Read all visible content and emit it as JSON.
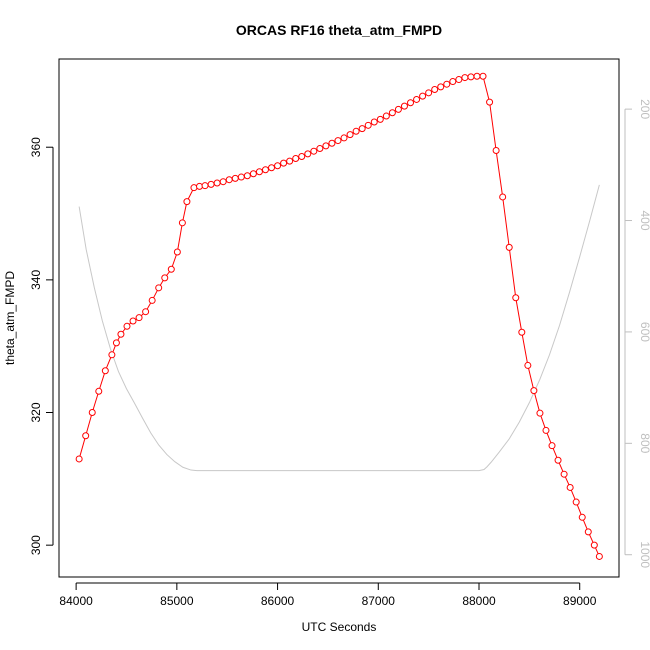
{
  "chart_data": {
    "type": "line",
    "title": "ORCAS RF16 theta_atm_FMPD",
    "xlabel": "UTC Seconds",
    "ylabel": "theta_atm_FMPD",
    "xlim": [
      83830,
      89390
    ],
    "ylim": [
      295.2,
      373.3
    ],
    "x_ticks": [
      "84000",
      "85000",
      "86000",
      "87000",
      "88000",
      "89000"
    ],
    "y_ticks": [
      "300",
      "320",
      "340",
      "360"
    ],
    "y2_ticks": [
      "200",
      "400",
      "600",
      "800",
      "1000"
    ],
    "y2_lim": [
      1040,
      110
    ],
    "grid": false,
    "series": [
      {
        "color": "#ff0000",
        "style": "line-with-open-circles",
        "x": [
          84030,
          84095,
          84160,
          84225,
          84290,
          84355,
          84400,
          84445,
          84505,
          84565,
          84625,
          84690,
          84755,
          84820,
          84880,
          84945,
          85005,
          85055,
          85100,
          85170,
          85225,
          85280,
          85340,
          85400,
          85460,
          85520,
          85580,
          85640,
          85700,
          85760,
          85820,
          85880,
          85940,
          86000,
          86060,
          86120,
          86180,
          86240,
          86300,
          86360,
          86420,
          86480,
          86540,
          86600,
          86660,
          86720,
          86780,
          86840,
          86900,
          86960,
          87020,
          87080,
          87140,
          87200,
          87260,
          87320,
          87380,
          87440,
          87500,
          87560,
          87620,
          87680,
          87740,
          87800,
          87860,
          87920,
          87980,
          88040,
          88105,
          88170,
          88235,
          88300,
          88365,
          88425,
          88485,
          88545,
          88605,
          88665,
          88725,
          88785,
          88845,
          88905,
          88965,
          89025,
          89085,
          89145,
          89195
        ],
        "values": [
          313.0,
          316.5,
          320.0,
          323.2,
          326.3,
          328.7,
          330.5,
          331.8,
          333.0,
          333.8,
          334.3,
          335.2,
          336.9,
          338.8,
          340.3,
          341.6,
          344.2,
          348.6,
          351.8,
          353.9,
          354.1,
          354.2,
          354.4,
          354.6,
          354.8,
          355.1,
          355.3,
          355.5,
          355.7,
          356.0,
          356.3,
          356.6,
          356.9,
          357.2,
          357.6,
          357.9,
          358.3,
          358.6,
          359.0,
          359.4,
          359.8,
          360.2,
          360.6,
          361.0,
          361.4,
          361.9,
          362.4,
          362.8,
          363.3,
          363.8,
          364.2,
          364.7,
          365.2,
          365.7,
          366.2,
          366.7,
          367.2,
          367.7,
          368.2,
          368.7,
          369.1,
          369.5,
          369.9,
          370.2,
          370.5,
          370.6,
          370.7,
          370.7,
          366.8,
          359.5,
          352.5,
          344.9,
          337.3,
          332.1,
          327.1,
          323.3,
          319.9,
          317.3,
          315.0,
          312.8,
          310.7,
          308.7,
          306.5,
          304.2,
          302.0,
          300.0,
          298.3
        ]
      },
      {
        "color": "#c8c8c8",
        "style": "line",
        "axis": "right",
        "x": [
          84030,
          84100,
          84180,
          84260,
          84340,
          84420,
          84500,
          84580,
          84660,
          84740,
          84820,
          84900,
          84980,
          85060,
          85140,
          85200,
          85300,
          85500,
          85800,
          86200,
          86600,
          87000,
          87400,
          87800,
          88000,
          88050,
          88080,
          88120,
          88200,
          88300,
          88400,
          88500,
          88600,
          88700,
          88800,
          88900,
          89000,
          89100,
          89195
        ],
        "values": [
          375,
          452,
          520,
          580,
          630,
          671,
          702,
          728,
          755,
          781,
          803,
          820,
          833,
          843,
          848,
          849,
          849,
          849,
          849,
          849,
          849,
          849,
          849,
          849,
          849,
          847,
          842,
          834,
          816,
          792,
          762,
          727,
          687,
          641,
          588,
          528,
          465,
          400,
          336
        ]
      }
    ]
  }
}
